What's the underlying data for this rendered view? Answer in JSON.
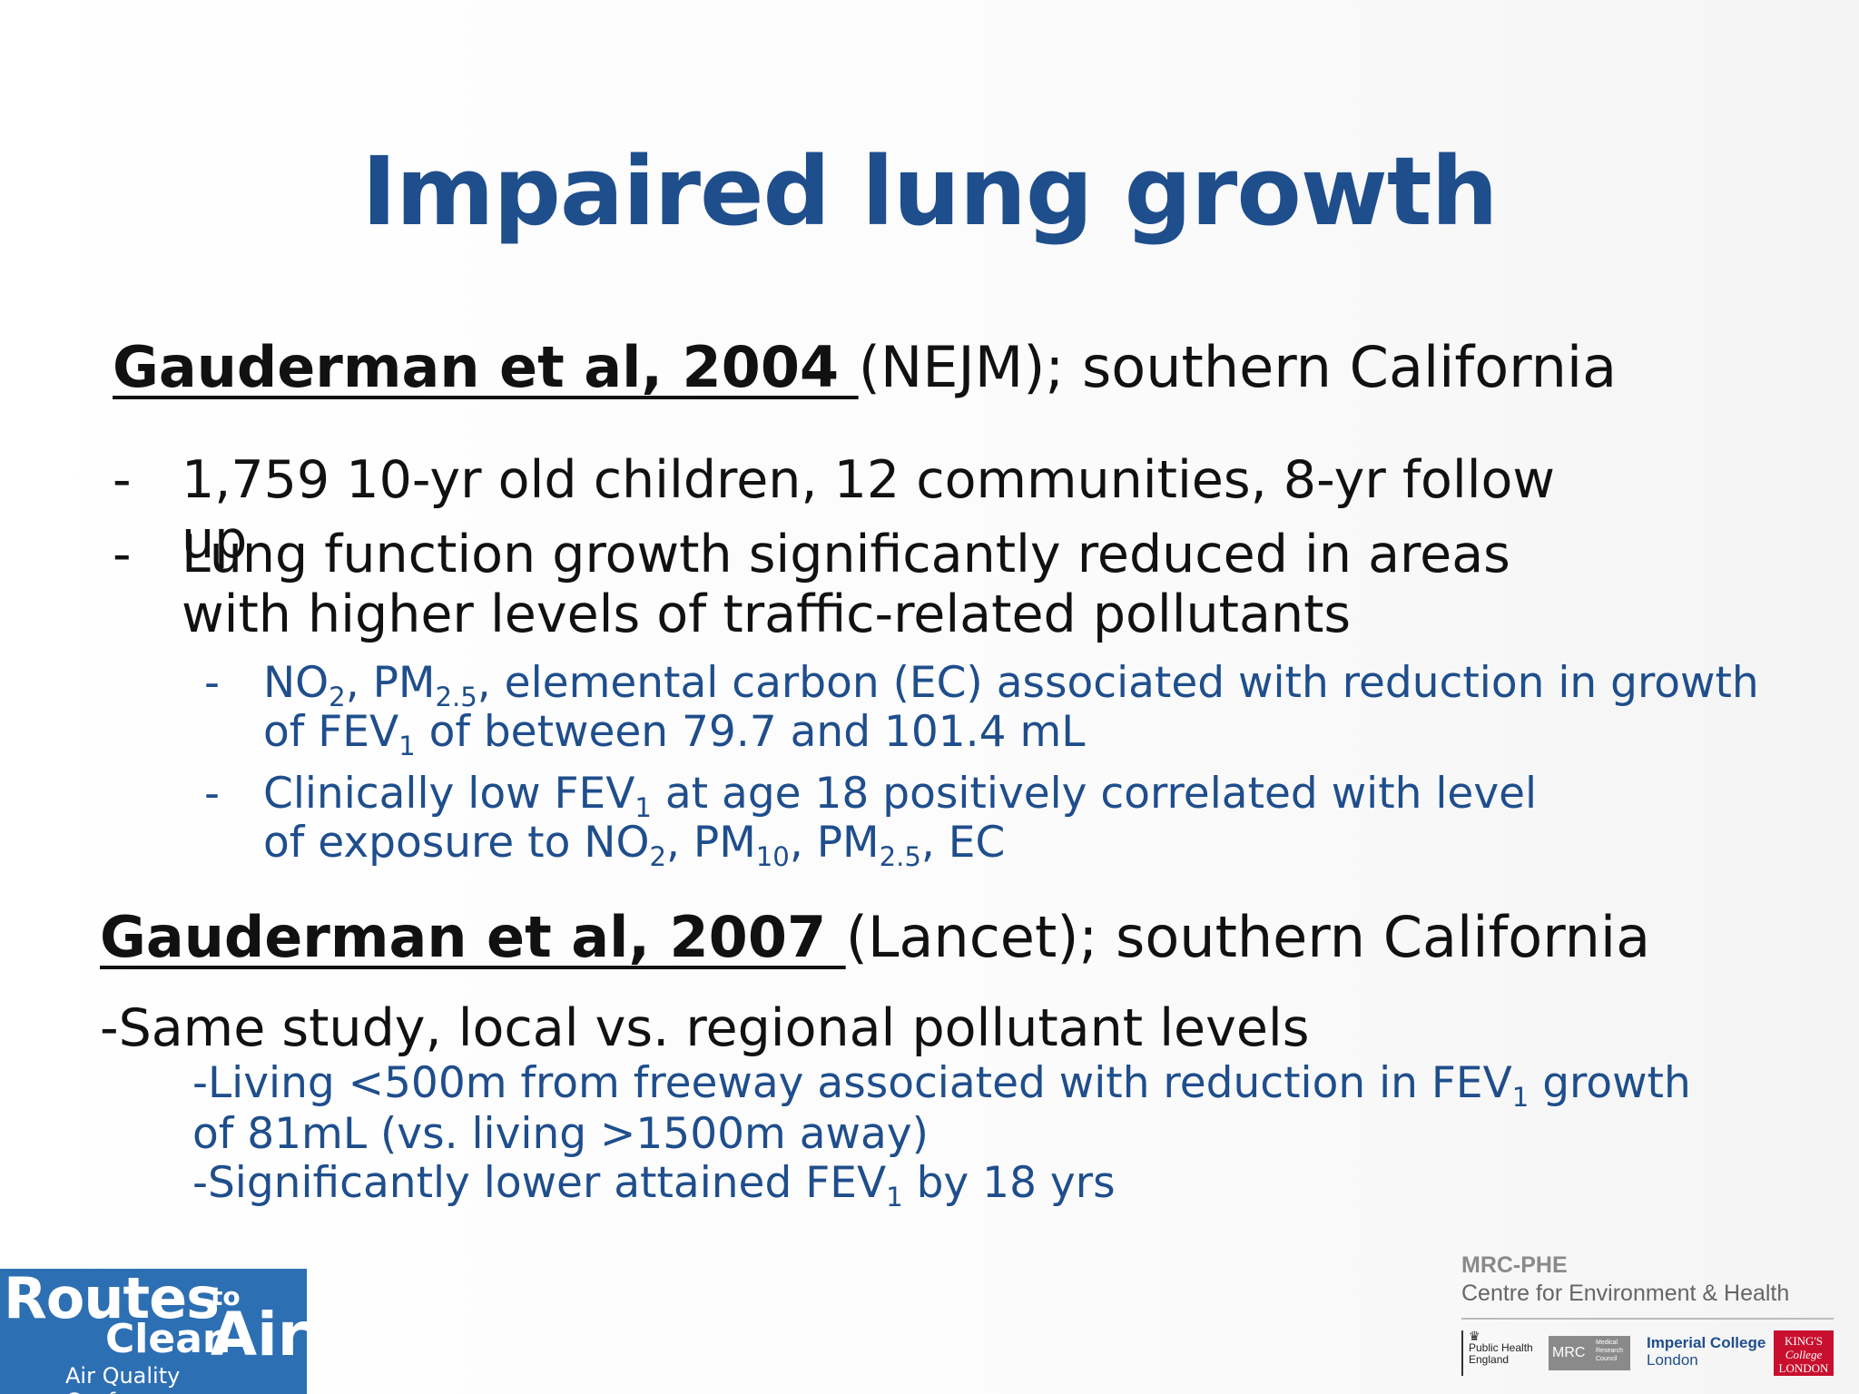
{
  "slide": {
    "title": "Impaired lung growth",
    "study1": {
      "cite": "Gauderman et al, 2004 ",
      "rest": "(NEJM); southern California",
      "bullets": [
        "1,759 10-yr old children, 12 communities, 8-yr follow up",
        "Lung function growth significantly reduced in areas with higher levels of traffic-related pollutants"
      ],
      "sub1": {
        "a": "NO",
        "a_sub": "2",
        "b": ", PM",
        "b_sub": "2.5",
        "c": ", elemental carbon (EC) associated with reduction in growth of FEV",
        "c_sub": "1",
        "d": " of between 79.7 and 101.4 mL"
      },
      "sub2": {
        "a": "Clinically low FEV",
        "a_sub": "1",
        "b": " at age 18 positively correlated with level of exposure to NO",
        "b_sub": "2",
        "c": ", PM",
        "c_sub": "10",
        "d": ", PM",
        "d_sub": "2.5",
        "e": ", EC"
      },
      "dash": "-"
    },
    "study2": {
      "cite": "Gauderman et al, 2007 ",
      "rest": "(Lancet); southern California",
      "line1": "-Same study, local vs. regional pollutant levels",
      "line2a": "-Living <500m from freeway associated with reduction in FEV",
      "line2_sub": "1",
      "line2b": " growth",
      "line3": "of 81mL (vs. living >1500m away)",
      "line4a": "-Significantly lower attained FEV",
      "line4_sub": "1",
      "line4b": " by 18 yrs"
    }
  },
  "footer": {
    "rtca": {
      "routes": "Routes",
      "to": "to",
      "clean": "Clean",
      "air": "Air",
      "conference": "Air Quality Conference"
    },
    "mrc_phe": {
      "line1": "MRC-PHE",
      "line2": "Centre for Environment & Health"
    },
    "logos": {
      "phe_line1": "Public Health",
      "phe_line2": "England",
      "mrc": "MRC",
      "mrc_small1": "Medical",
      "mrc_small2": "Research",
      "mrc_small3": "Council",
      "imperial1": "Imperial College",
      "imperial2": "London",
      "kcl1": "KING'S",
      "kcl2": "College",
      "kcl3": "LONDON"
    }
  },
  "colors": {
    "title": "#1f4e8c",
    "accent_text": "#1f4e8c",
    "logo_blue": "#2d6fb3",
    "kcl_red": "#c8102e"
  }
}
